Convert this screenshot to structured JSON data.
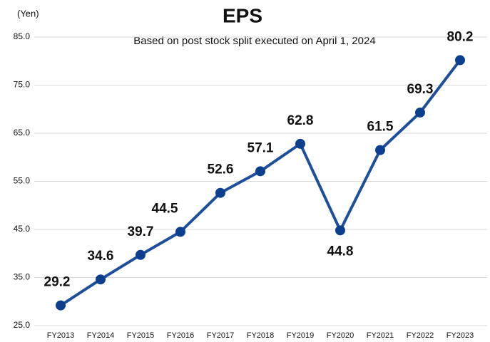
{
  "chart_data": {
    "type": "line",
    "title": "EPS",
    "subtitle": "Based on post stock split executed on April 1, 2024",
    "y_label": "(Yen)",
    "categories": [
      "FY2013",
      "FY2014",
      "FY2015",
      "FY2016",
      "FY2017",
      "FY2018",
      "FY2019",
      "FY2020",
      "FY2021",
      "FY2022",
      "FY2023"
    ],
    "values": [
      29.2,
      34.6,
      39.7,
      44.5,
      52.6,
      57.1,
      62.8,
      44.8,
      61.5,
      69.3,
      80.2
    ],
    "color": "#1d4f9c",
    "marker_color": "#0d3f8f",
    "ylim": [
      25,
      85
    ],
    "yticks": [
      {
        "value": 25,
        "label": "25.0"
      },
      {
        "value": 35,
        "label": "35.0"
      },
      {
        "value": 45,
        "label": "45.0"
      },
      {
        "value": 55,
        "label": "55.0"
      },
      {
        "value": 65,
        "label": "65.0"
      },
      {
        "value": 75,
        "label": "75.0"
      },
      {
        "value": 85,
        "label": "85.0"
      }
    ],
    "grid": true
  }
}
